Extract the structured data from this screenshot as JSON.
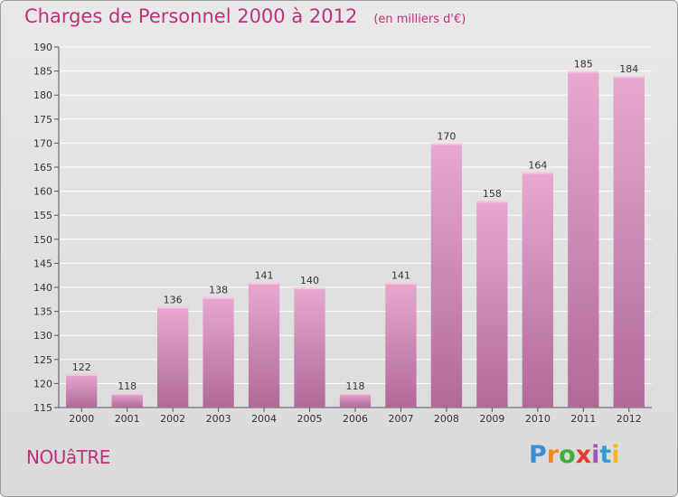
{
  "header": {
    "title": "Charges de Personnel 2000 à 2012",
    "subtitle": "(en milliers d'€)"
  },
  "footer": {
    "commune": "NOUâTRE",
    "logo_letters": [
      "P",
      "r",
      "o",
      "x",
      "i",
      "t",
      "i"
    ],
    "logo_colors": [
      "#3a8fd6",
      "#f28a1c",
      "#3fae3a",
      "#e63a2e",
      "#9b59b6",
      "#2e9fd6",
      "#f2b81c"
    ]
  },
  "colors": {
    "bar_top": "#e8a8d0",
    "bar_bottom": "#b06a98",
    "grid": "#ffffff",
    "title": "#c0307a"
  },
  "chart_data": {
    "type": "bar",
    "title": "Charges de Personnel 2000 à 2012",
    "subtitle": "(en milliers d'€)",
    "xlabel": "",
    "ylabel": "",
    "categories": [
      "2000",
      "2001",
      "2002",
      "2003",
      "2004",
      "2005",
      "2006",
      "2007",
      "2008",
      "2009",
      "2010",
      "2011",
      "2012"
    ],
    "values": [
      122,
      118,
      136,
      138,
      141,
      140,
      118,
      141,
      170,
      158,
      164,
      185,
      184
    ],
    "ylim": [
      115,
      190
    ],
    "yticks": [
      115,
      120,
      125,
      130,
      135,
      140,
      145,
      150,
      155,
      160,
      165,
      170,
      175,
      180,
      185,
      190
    ],
    "grid": true,
    "legend": "none"
  }
}
